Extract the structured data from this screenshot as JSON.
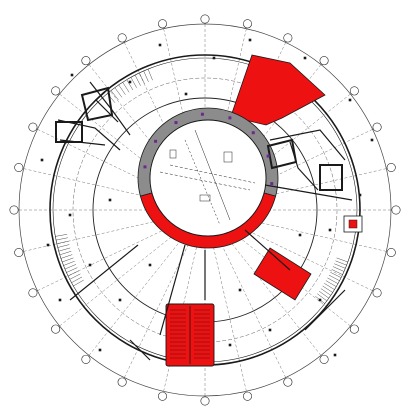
{
  "drawing": {
    "type": "circular-floor-plan",
    "highlight_color": "#ee1111",
    "line_color": "#1a1a1a",
    "grid_line_color": "#555555",
    "core_fill": "#8c8c8c"
  },
  "grid_markers": {
    "count": 28,
    "labels": [
      "",
      "",
      "",
      "",
      "",
      "",
      "",
      "",
      "",
      "",
      "",
      "",
      "",
      "",
      "",
      "",
      "",
      "",
      "",
      "",
      "",
      "",
      "",
      "",
      "",
      "",
      "",
      ""
    ]
  },
  "highlighted_zones": [
    {
      "id": "upper-right-wedge",
      "label": ""
    },
    {
      "id": "core-ring-lower-segment",
      "label": ""
    },
    {
      "id": "right-rotated-block",
      "label": ""
    },
    {
      "id": "lower-left-stair-block",
      "label": ""
    },
    {
      "id": "right-small-square",
      "label": ""
    }
  ],
  "room_tags": [
    "",
    "",
    "",
    "",
    "",
    "",
    "",
    "",
    ""
  ]
}
